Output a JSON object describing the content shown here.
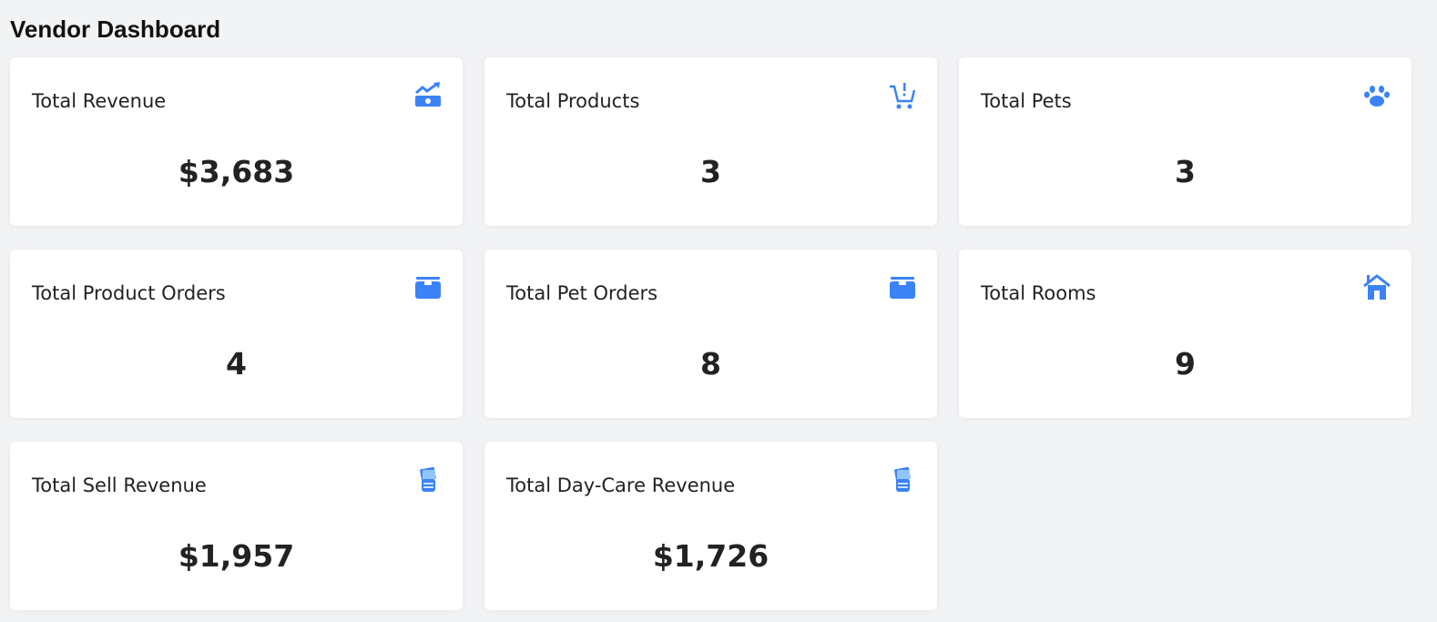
{
  "header": {
    "title": "Vendor Dashboard"
  },
  "accent": "#3b82f6",
  "cards": [
    {
      "title": "Total Revenue",
      "value": "$3,683",
      "icon": "money-trend-icon"
    },
    {
      "title": "Total Products",
      "value": "3",
      "icon": "cart-icon"
    },
    {
      "title": "Total Pets",
      "value": "3",
      "icon": "paw-icon"
    },
    {
      "title": "Total Product Orders",
      "value": "4",
      "icon": "box-icon"
    },
    {
      "title": "Total Pet Orders",
      "value": "8",
      "icon": "box-icon"
    },
    {
      "title": "Total Rooms",
      "value": "9",
      "icon": "house-icon"
    },
    {
      "title": "Total Sell Revenue",
      "value": "$1,957",
      "icon": "cash-hand-icon"
    },
    {
      "title": "Total Day-Care Revenue",
      "value": "$1,726",
      "icon": "cash-hand-icon"
    }
  ]
}
